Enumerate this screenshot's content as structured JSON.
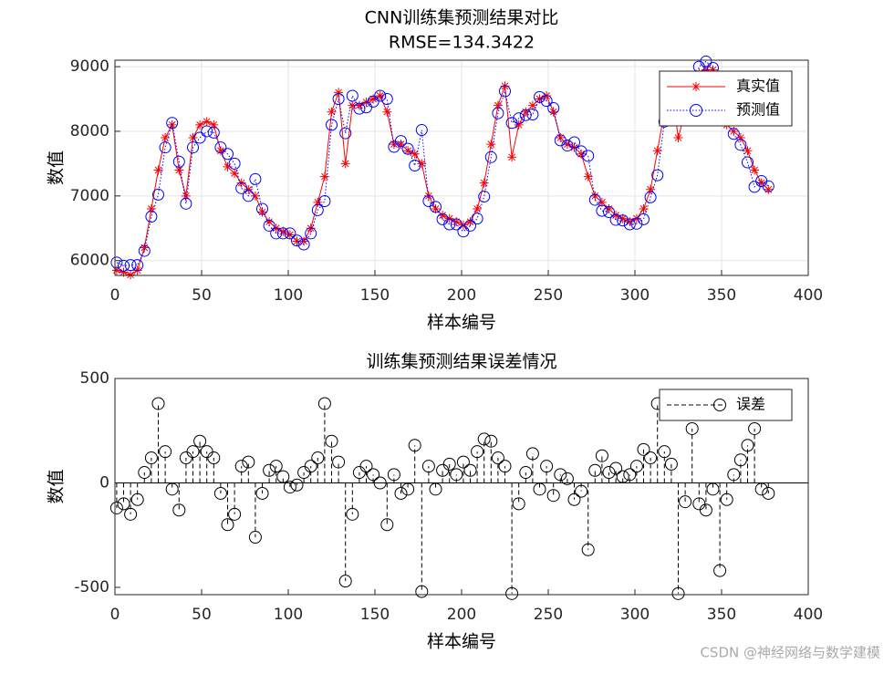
{
  "chart_data": [
    {
      "type": "line",
      "title": "CNN训练集预测结果对比",
      "subtitle": "RMSE=134.3422",
      "xlabel": "样本编号",
      "ylabel": "数值",
      "x": [
        1,
        5,
        9,
        13,
        17,
        21,
        25,
        29,
        33,
        37,
        41,
        45,
        49,
        53,
        57,
        61,
        65,
        69,
        73,
        77,
        81,
        85,
        89,
        93,
        97,
        101,
        105,
        109,
        113,
        117,
        121,
        125,
        129,
        133,
        137,
        141,
        145,
        149,
        153,
        157,
        161,
        165,
        169,
        173,
        177,
        181,
        185,
        189,
        193,
        197,
        201,
        205,
        209,
        213,
        217,
        221,
        225,
        229,
        233,
        237,
        241,
        245,
        249,
        253,
        257,
        261,
        265,
        269,
        273,
        277,
        281,
        285,
        289,
        293,
        297,
        301,
        305,
        309,
        313,
        317,
        321,
        325,
        329,
        333,
        337,
        341,
        345,
        349,
        353,
        357,
        361,
        365,
        369,
        373,
        377
      ],
      "series": [
        {
          "name": "真实值",
          "color": "#ff0000",
          "marker": "star",
          "line": "solid",
          "values": [
            5850,
            5820,
            5780,
            5850,
            6200,
            6800,
            7400,
            7900,
            8100,
            7400,
            7000,
            7900,
            8100,
            8150,
            8100,
            7700,
            7450,
            7350,
            7200,
            7100,
            7000,
            6750,
            6600,
            6500,
            6450,
            6400,
            6300,
            6300,
            6500,
            6900,
            7300,
            8300,
            8600,
            7500,
            8400,
            8400,
            8450,
            8500,
            8550,
            8300,
            7800,
            7800,
            7700,
            7650,
            7500,
            7000,
            6800,
            6700,
            6650,
            6600,
            6550,
            6600,
            6800,
            7200,
            7800,
            8400,
            8700,
            7600,
            8100,
            8300,
            8400,
            8500,
            8550,
            8300,
            7900,
            7800,
            7750,
            7650,
            7300,
            7000,
            6900,
            6800,
            6700,
            6650,
            6600,
            6650,
            6800,
            7100,
            7700,
            8300,
            8700,
            7900,
            8300,
            8800,
            8900,
            8950,
            8950,
            8300,
            8100,
            8000,
            7900,
            7700,
            7400,
            7200,
            7100
          ]
        },
        {
          "name": "预测值",
          "color": "#0000ff",
          "marker": "circle",
          "line": "dotted",
          "values": [
            5970,
            5920,
            5930,
            5930,
            6150,
            6680,
            7020,
            7750,
            8130,
            7530,
            6880,
            7750,
            7900,
            8000,
            7980,
            7750,
            7650,
            7500,
            7120,
            7000,
            7260,
            6800,
            6540,
            6420,
            6420,
            6420,
            6310,
            6250,
            6420,
            6780,
            6920,
            8100,
            8500,
            7970,
            8550,
            8350,
            8370,
            8460,
            8550,
            8500,
            7760,
            7850,
            7730,
            7470,
            8020,
            6920,
            6830,
            6640,
            6560,
            6560,
            6450,
            6540,
            6650,
            6990,
            7600,
            8280,
            8620,
            8130,
            8200,
            8250,
            8260,
            8530,
            8470,
            8360,
            7860,
            7780,
            7830,
            7690,
            7620,
            6940,
            6770,
            6750,
            6630,
            6620,
            6560,
            6570,
            6640,
            6980,
            7320,
            8150,
            8610,
            8430,
            8390,
            8540,
            9000,
            9080,
            8980,
            8720,
            8180,
            7960,
            7790,
            7520,
            7140,
            7230,
            7150
          ]
        }
      ],
      "xlim": [
        0,
        400
      ],
      "xticks": [
        0,
        50,
        100,
        150,
        200,
        250,
        300,
        350,
        400
      ],
      "ylim": [
        5770,
        9100
      ],
      "yticks": [
        6000,
        7000,
        8000,
        9000
      ],
      "grid": true,
      "legend": "upper right"
    },
    {
      "type": "stem",
      "title": "训练集预测结果误差情况",
      "xlabel": "样本编号",
      "ylabel": "数值",
      "x": [
        1,
        5,
        9,
        13,
        17,
        21,
        25,
        29,
        33,
        37,
        41,
        45,
        49,
        53,
        57,
        61,
        65,
        69,
        73,
        77,
        81,
        85,
        89,
        93,
        97,
        101,
        105,
        109,
        113,
        117,
        121,
        125,
        129,
        133,
        137,
        141,
        145,
        149,
        153,
        157,
        161,
        165,
        169,
        173,
        177,
        181,
        185,
        189,
        193,
        197,
        201,
        205,
        209,
        213,
        217,
        221,
        225,
        229,
        233,
        237,
        241,
        245,
        249,
        253,
        257,
        261,
        265,
        269,
        273,
        277,
        281,
        285,
        289,
        293,
        297,
        301,
        305,
        309,
        313,
        317,
        321,
        325,
        329,
        333,
        337,
        341,
        345,
        349,
        353,
        357,
        361,
        365,
        369,
        373,
        377
      ],
      "series": [
        {
          "name": "误差",
          "color": "#000000",
          "values": [
            -120,
            -100,
            -150,
            -80,
            50,
            120,
            380,
            150,
            -30,
            -130,
            120,
            150,
            200,
            150,
            120,
            -50,
            -200,
            -150,
            80,
            100,
            -260,
            -50,
            60,
            80,
            30,
            -20,
            -10,
            50,
            80,
            120,
            380,
            200,
            100,
            -470,
            -150,
            50,
            80,
            40,
            0,
            -200,
            40,
            -50,
            -30,
            180,
            -520,
            80,
            -30,
            60,
            90,
            40,
            100,
            60,
            150,
            210,
            200,
            120,
            80,
            -530,
            -100,
            50,
            140,
            -30,
            80,
            -60,
            40,
            20,
            -80,
            -40,
            -320,
            60,
            130,
            50,
            70,
            30,
            40,
            80,
            160,
            120,
            380,
            150,
            90,
            -530,
            -90,
            260,
            -100,
            -130,
            -30,
            -420,
            -80,
            40,
            110,
            180,
            260,
            -30,
            -50
          ]
        }
      ],
      "xlim": [
        0,
        400
      ],
      "xticks": [
        0,
        50,
        100,
        150,
        200,
        250,
        300,
        350,
        400
      ],
      "ylim": [
        -535,
        500
      ],
      "yticks": [
        -500,
        0,
        500
      ],
      "grid": false,
      "legend": "upper right"
    }
  ],
  "watermark": "CSDN @神经网络与数学建模"
}
